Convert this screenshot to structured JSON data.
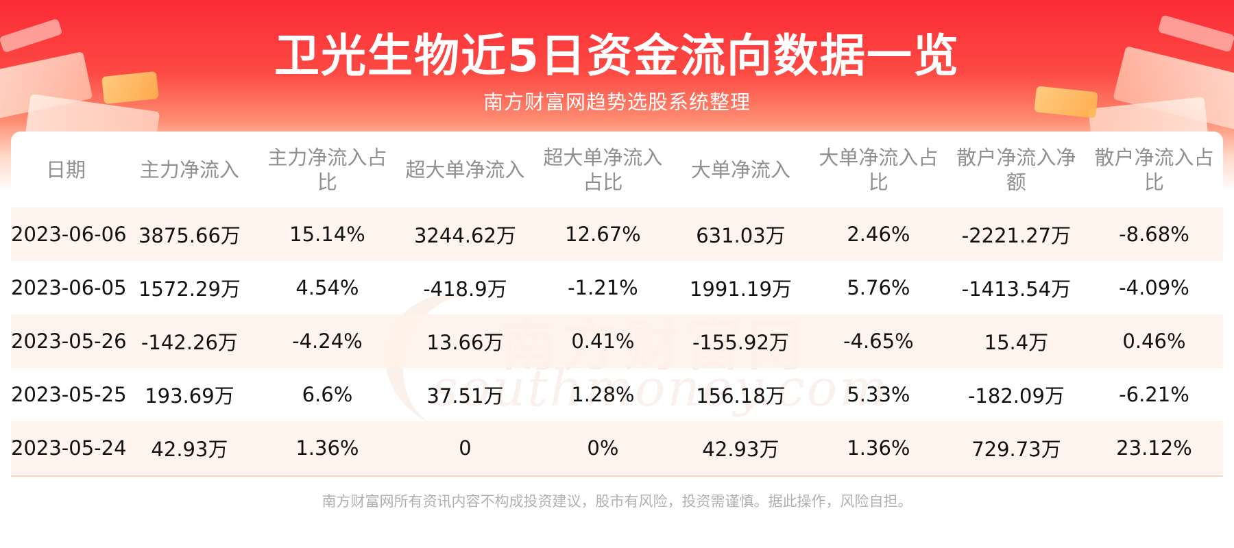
{
  "header": {
    "title": "卫光生物近5日资金流向数据一览",
    "subtitle": "南方财富网趋势选股系统整理"
  },
  "watermark": {
    "chinese": "南方财富网",
    "english": "southmoney.com"
  },
  "table": {
    "columns": [
      "日期",
      "主力净流入",
      "主力净流入占比",
      "超大单净流入",
      "超大单净流入占比",
      "大单净流入",
      "大单净流入占比",
      "散户净流入净额",
      "散户净流入占比"
    ],
    "rows": [
      [
        "2023-06-06",
        "3875.66万",
        "15.14%",
        "3244.62万",
        "12.67%",
        "631.03万",
        "2.46%",
        "-2221.27万",
        "-8.68%"
      ],
      [
        "2023-06-05",
        "1572.29万",
        "4.54%",
        "-418.9万",
        "-1.21%",
        "1991.19万",
        "5.76%",
        "-1413.54万",
        "-4.09%"
      ],
      [
        "2023-05-26",
        "-142.26万",
        "-4.24%",
        "13.66万",
        "0.41%",
        "-155.92万",
        "-4.65%",
        "15.4万",
        "0.46%"
      ],
      [
        "2023-05-25",
        "193.69万",
        "6.6%",
        "37.51万",
        "1.28%",
        "156.18万",
        "5.33%",
        "-182.09万",
        "-6.21%"
      ],
      [
        "2023-05-24",
        "42.93万",
        "1.36%",
        "0",
        "0%",
        "42.93万",
        "1.36%",
        "729.73万",
        "23.12%"
      ]
    ]
  },
  "footer": {
    "disclaimer": "南方财富网所有资讯内容不构成投资建议，股市有风险，投资需谨慎。据此操作，风险自担。"
  },
  "colors": {
    "banner_red": "#fb2a36",
    "row_shade": "#fff3eb",
    "header_text": "#8f8f8f",
    "cell_text": "#111111",
    "footer_text": "#b0b0b0"
  }
}
